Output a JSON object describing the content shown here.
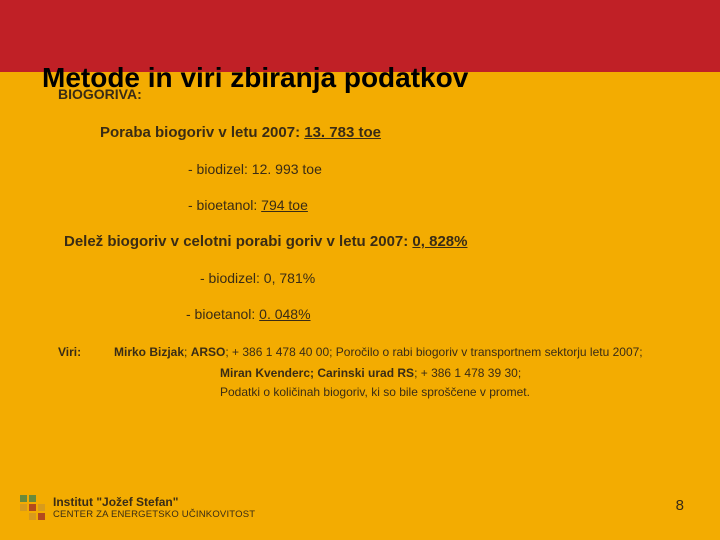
{
  "title": "Metode in viri zbiranja podatkov",
  "sectionLabel": "BIOGORIVA:",
  "consumptionLabel": "Poraba biogoriv v letu 2007: ",
  "consumptionValue": "13. 783 toe",
  "biodieselLabel": "- biodizel: 12. 993 toe",
  "bioethanolPrefix": "- bioetanol: ",
  "bioethanolValue": "794 toe",
  "shareLabel": "Delež biogoriv v celotni porabi goriv v letu 2007: ",
  "shareValue": "0, 828%",
  "shareBiodiesel": "- biodizel: 0, 781%",
  "shareBioethanolPrefix": "- bioetanol: ",
  "shareBioethanolValue": "0. 048%",
  "viriLabel": "Viri:",
  "viriLine1a": "Mirko Bizjak",
  "viriLine1b": "; ",
  "viriLine1c": "ARSO",
  "viriLine1d": "; + 386 1 478 40 00; Poročilo o rabi biogoriv v transportnem sektorju letu 2007;",
  "viriLine2a": "Miran Kvenderc; Carinski urad RS",
  "viriLine2b": "; + 386 1 478 39 30;",
  "viriLine3": "Podatki o količinah biogoriv, ki so bile sproščene v promet.",
  "footerMain": "Institut \"Jožef Stefan\"",
  "footerSub": "CENTER ZA ENERGETSKO UČINKOVITOST",
  "pageNum": "8"
}
